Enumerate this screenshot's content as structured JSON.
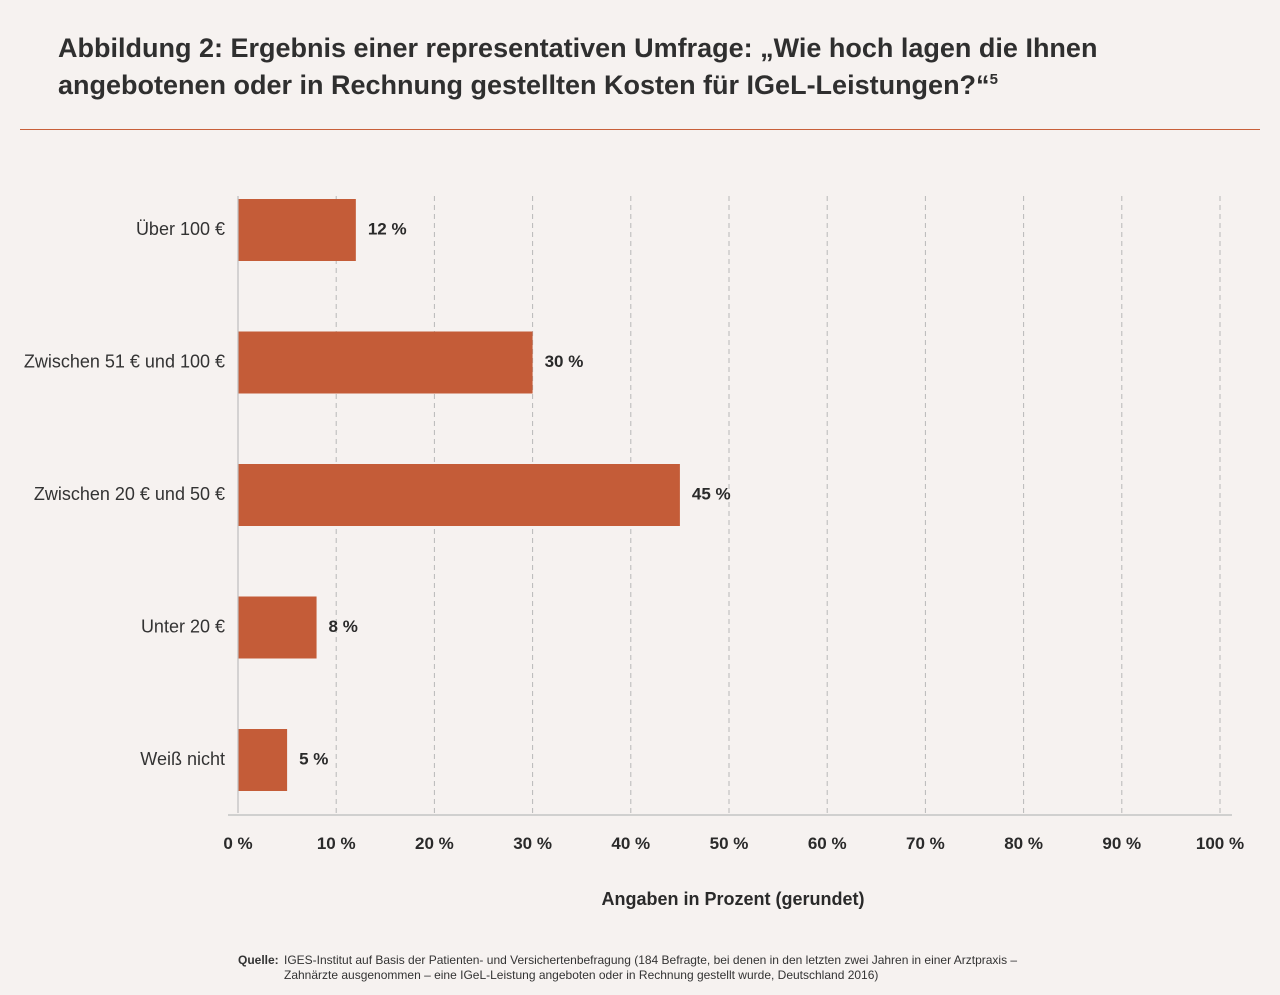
{
  "title": "Abbildung 2: Ergebnis einer representativen Umfrage: „Wie hoch lagen die Ihnen angebotenen oder in Rechnung gestellten Kosten für IGeL-Leistungen?“",
  "title_footnote": "5",
  "source_label": "Quelle:",
  "source_text": "IGES-Institut auf Basis der Patienten- und Versichertenbefragung (184 Befragte, bei denen in den letzten zwei Jahren in einer Arztpraxis – Zahnärzte ausgenommen – eine IGeL-Leistung angeboten oder in Rechnung gestellt wurde, Deutschland 2016)",
  "colors": {
    "bar": "#c45c38",
    "rule": "#c8603a",
    "background": "#f6f2f0",
    "grid": "#b8b8b8"
  },
  "chart_data": {
    "type": "bar",
    "orientation": "horizontal",
    "categories": [
      "Über 100 €",
      "Zwischen 51 € und 100 €",
      "Zwischen 20 € und 50 €",
      "Unter 20 €",
      "Weiß nicht"
    ],
    "values": [
      12,
      30,
      45,
      8,
      5
    ],
    "value_labels": [
      "12 %",
      "30 %",
      "45 %",
      "8 %",
      "5 %"
    ],
    "xlabel": "Angaben in Prozent (gerundet)",
    "xlim": [
      0,
      100
    ],
    "xticks": [
      0,
      10,
      20,
      30,
      40,
      50,
      60,
      70,
      80,
      90,
      100
    ],
    "xtick_labels": [
      "0 %",
      "10 %",
      "20 %",
      "30 %",
      "40 %",
      "50 %",
      "60 %",
      "70 %",
      "80 %",
      "90 %",
      "100 %"
    ],
    "grid": "vertical dashed"
  }
}
